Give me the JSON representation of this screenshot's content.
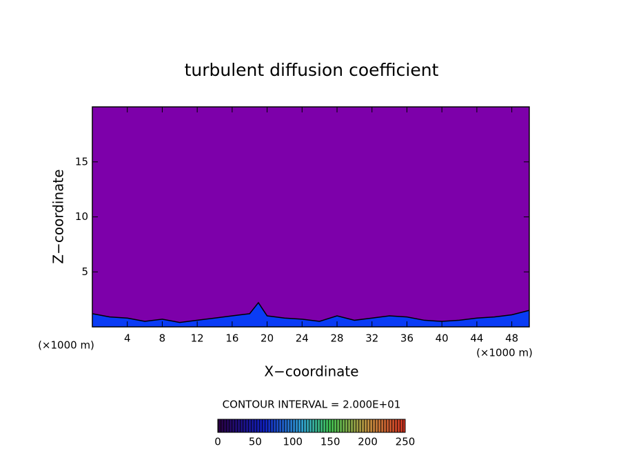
{
  "chart_data": {
    "type": "contour",
    "title": "turbulent diffusion coefficient",
    "xlabel": "X−coordinate",
    "ylabel": "Z−coordinate",
    "x_unit": "(×1000 m)",
    "y_unit": "(×1000 m)",
    "xlim": [
      0,
      50
    ],
    "ylim": [
      0,
      20
    ],
    "xticks": [
      4,
      8,
      12,
      16,
      20,
      24,
      28,
      32,
      36,
      40,
      44,
      48
    ],
    "yticks": [
      5,
      10,
      15
    ],
    "background_color": "#7d00aa",
    "layer": {
      "color": "#0a3cf5",
      "x": [
        0,
        2,
        4,
        6,
        8,
        10,
        12,
        14,
        16,
        18,
        19,
        20,
        22,
        24,
        26,
        28,
        30,
        32,
        34,
        36,
        38,
        40,
        42,
        44,
        46,
        48,
        50
      ],
      "z": [
        1.2,
        0.9,
        0.8,
        0.5,
        0.7,
        0.4,
        0.6,
        0.8,
        1.0,
        1.2,
        2.2,
        1.0,
        0.8,
        0.7,
        0.5,
        1.0,
        0.6,
        0.8,
        1.0,
        0.9,
        0.6,
        0.5,
        0.6,
        0.8,
        0.9,
        1.1,
        1.5
      ]
    },
    "colorbar": {
      "label": "CONTOUR INTERVAL = 2.000E+01",
      "lim": [
        0,
        250
      ],
      "ticks": [
        0,
        50,
        100,
        150,
        200,
        250
      ]
    }
  }
}
